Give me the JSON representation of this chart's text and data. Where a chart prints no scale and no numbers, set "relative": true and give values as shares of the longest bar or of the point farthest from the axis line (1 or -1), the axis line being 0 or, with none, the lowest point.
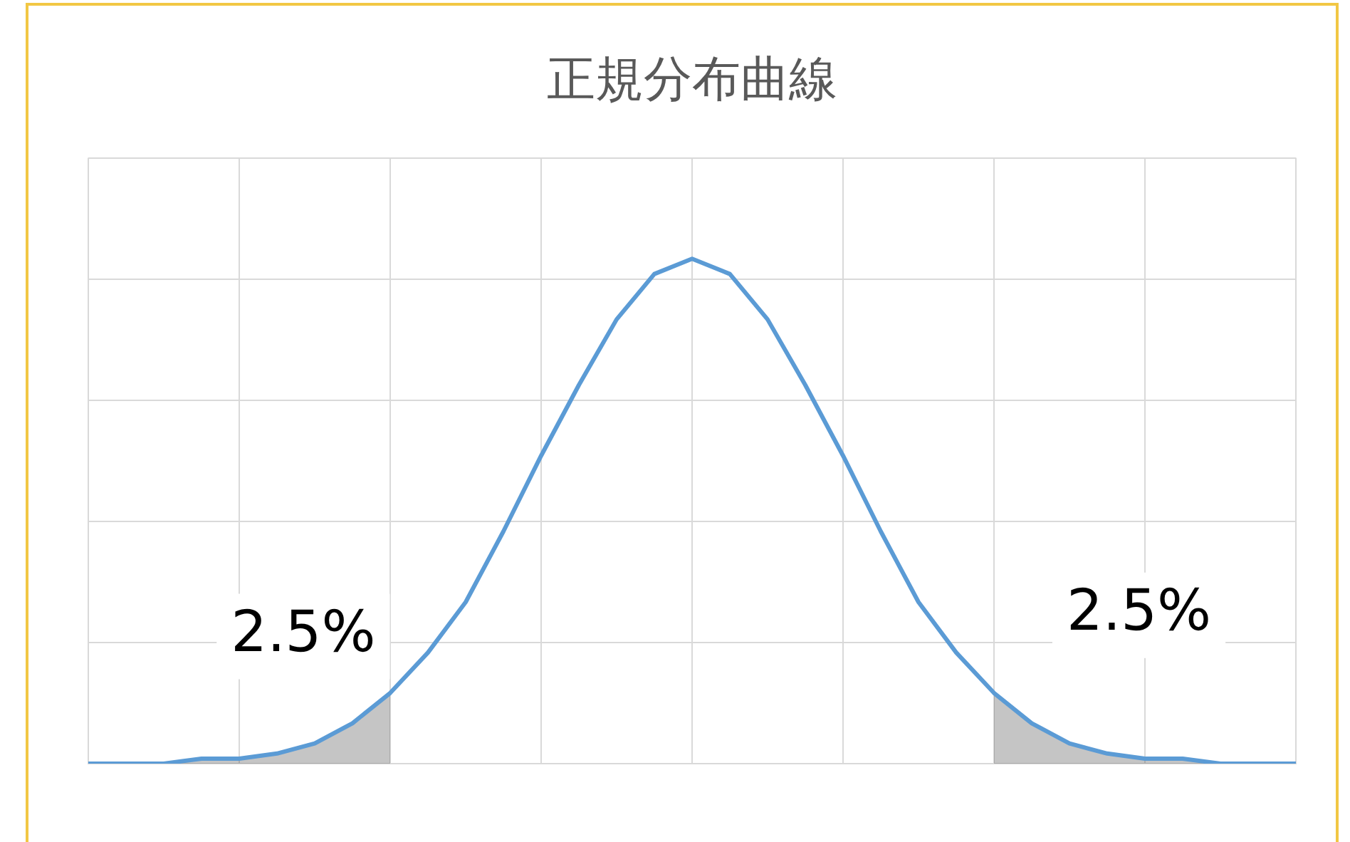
{
  "chart_data": {
    "type": "line",
    "title": "正規分布曲線",
    "relative": true,
    "grid": true,
    "legend": false,
    "marker": "none",
    "line_style": "solid",
    "categories": [
      null,
      null,
      null,
      null,
      null,
      null,
      null,
      null,
      null,
      null,
      null,
      null,
      null,
      null,
      null,
      null,
      null,
      null,
      null,
      null,
      null,
      null,
      null,
      null,
      null,
      null,
      null,
      null,
      null,
      null,
      null,
      null,
      null
    ],
    "series": [
      {
        "color": "#5b9bd5",
        "values": [
          0,
          0,
          0,
          0.01,
          0.01,
          0.02,
          0.04,
          0.08,
          0.14,
          0.22,
          0.32,
          0.46,
          0.61,
          0.75,
          0.88,
          0.97,
          1,
          0.97,
          0.88,
          0.75,
          0.61,
          0.46,
          0.32,
          0.22,
          0.14,
          0.08,
          0.04,
          0.02,
          0.01,
          0.01,
          0,
          0,
          0
        ]
      },
      {
        "type": "area",
        "color": "#404040",
        "values": [
          0,
          0,
          0,
          0.01,
          0.01,
          0.02,
          0.04,
          0.08,
          0.14,
          null,
          null,
          null,
          null,
          null,
          null,
          null,
          null,
          null,
          null,
          null,
          null,
          null,
          null,
          null,
          0.14,
          0.08,
          0.04,
          0.02,
          0.01,
          0.01,
          0,
          0,
          0
        ]
      }
    ],
    "annotations": [
      "2.5%",
      "2.5%"
    ]
  }
}
